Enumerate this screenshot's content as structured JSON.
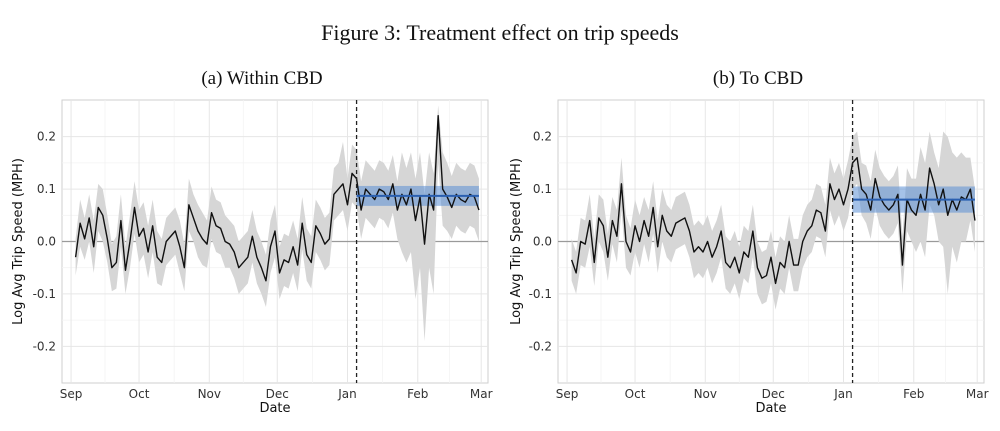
{
  "figure_title": "Figure 3: Treatment effect on trip speeds",
  "chart_data": [
    {
      "type": "line",
      "title": "(a) Within CBD",
      "xlabel": "Date",
      "ylabel": "Log Avg Trip Speed (MPH)",
      "xlim": [
        "2024-08-28",
        "2025-03-04"
      ],
      "ylim": [
        -0.27,
        0.27
      ],
      "x_ticks": [
        {
          "date": "2024-09-01",
          "label": "Sep"
        },
        {
          "date": "2024-10-01",
          "label": "Oct"
        },
        {
          "date": "2024-11-01",
          "label": "Nov"
        },
        {
          "date": "2024-12-01",
          "label": "Dec"
        },
        {
          "date": "2025-01-01",
          "label": "Jan"
        },
        {
          "date": "2025-02-01",
          "label": "Feb"
        },
        {
          "date": "2025-03-01",
          "label": "Mar"
        }
      ],
      "y_ticks": [
        0.2,
        0.1,
        0.0,
        -0.1,
        -0.2
      ],
      "y_tick_labels": [
        "0.2",
        "0.1",
        "0.0",
        "-0.1",
        "-0.2"
      ],
      "grid": true,
      "treatment_date": "2025-01-05",
      "effect": {
        "start": "2025-01-05",
        "end": "2025-02-28",
        "estimate": 0.087,
        "ci_low": 0.068,
        "ci_high": 0.106
      },
      "series": [
        {
          "name": "",
          "x": [
            "2024-09-03",
            "2024-09-05",
            "2024-09-07",
            "2024-09-09",
            "2024-09-11",
            "2024-09-13",
            "2024-09-15",
            "2024-09-17",
            "2024-09-19",
            "2024-09-21",
            "2024-09-23",
            "2024-09-25",
            "2024-09-27",
            "2024-09-29",
            "2024-10-01",
            "2024-10-03",
            "2024-10-05",
            "2024-10-07",
            "2024-10-09",
            "2024-10-11",
            "2024-10-13",
            "2024-10-15",
            "2024-10-17",
            "2024-10-19",
            "2024-10-21",
            "2024-10-23",
            "2024-10-25",
            "2024-10-27",
            "2024-10-29",
            "2024-10-31",
            "2024-11-02",
            "2024-11-04",
            "2024-11-06",
            "2024-11-08",
            "2024-11-10",
            "2024-11-12",
            "2024-11-14",
            "2024-11-16",
            "2024-11-18",
            "2024-11-20",
            "2024-11-22",
            "2024-11-24",
            "2024-11-26",
            "2024-11-28",
            "2024-11-30",
            "2024-12-02",
            "2024-12-04",
            "2024-12-06",
            "2024-12-08",
            "2024-12-10",
            "2024-12-12",
            "2024-12-14",
            "2024-12-16",
            "2024-12-18",
            "2024-12-20",
            "2024-12-22",
            "2024-12-24",
            "2024-12-26",
            "2024-12-28",
            "2024-12-30",
            "2025-01-01",
            "2025-01-03",
            "2025-01-05",
            "2025-01-07",
            "2025-01-09",
            "2025-01-11",
            "2025-01-13",
            "2025-01-15",
            "2025-01-17",
            "2025-01-19",
            "2025-01-21",
            "2025-01-23",
            "2025-01-25",
            "2025-01-27",
            "2025-01-29",
            "2025-01-31",
            "2025-02-02",
            "2025-02-04",
            "2025-02-06",
            "2025-02-08",
            "2025-02-10",
            "2025-02-12",
            "2025-02-14",
            "2025-02-16",
            "2025-02-18",
            "2025-02-20",
            "2025-02-22",
            "2025-02-24",
            "2025-02-26",
            "2025-02-28"
          ],
          "values": [
            -0.03,
            0.035,
            0.005,
            0.045,
            -0.01,
            0.065,
            0.05,
            0.005,
            -0.05,
            -0.04,
            0.04,
            -0.055,
            0.0,
            0.065,
            0.01,
            0.025,
            -0.02,
            0.03,
            -0.03,
            -0.04,
            0.0,
            0.01,
            0.02,
            -0.01,
            -0.05,
            0.07,
            0.045,
            0.02,
            0.005,
            -0.005,
            0.055,
            0.03,
            0.025,
            0.0,
            -0.005,
            -0.02,
            -0.05,
            -0.04,
            -0.03,
            0.01,
            -0.03,
            -0.05,
            -0.075,
            -0.01,
            0.02,
            -0.06,
            -0.035,
            -0.04,
            -0.01,
            -0.045,
            0.035,
            -0.025,
            -0.04,
            0.03,
            0.015,
            -0.005,
            0.005,
            0.09,
            0.1,
            0.11,
            0.07,
            0.13,
            0.12,
            0.06,
            0.1,
            0.09,
            0.08,
            0.1,
            0.095,
            0.08,
            0.11,
            0.06,
            0.09,
            0.07,
            0.1,
            0.04,
            0.085,
            -0.005,
            0.09,
            0.06,
            0.24,
            0.1,
            0.085,
            0.065,
            0.09,
            0.08,
            0.075,
            0.09,
            0.085,
            0.06
          ],
          "ci_low": [
            -0.065,
            -0.01,
            -0.035,
            0.0,
            -0.06,
            0.02,
            0.0,
            -0.04,
            -0.095,
            -0.09,
            -0.01,
            -0.1,
            -0.05,
            0.015,
            -0.04,
            -0.025,
            -0.07,
            -0.02,
            -0.08,
            -0.085,
            -0.045,
            -0.035,
            -0.025,
            -0.06,
            -0.095,
            0.02,
            0.0,
            -0.03,
            -0.045,
            -0.05,
            0.005,
            -0.02,
            -0.025,
            -0.05,
            -0.05,
            -0.07,
            -0.1,
            -0.09,
            -0.08,
            -0.04,
            -0.08,
            -0.1,
            -0.125,
            -0.06,
            -0.03,
            -0.11,
            -0.085,
            -0.09,
            -0.06,
            -0.095,
            -0.015,
            -0.075,
            -0.09,
            -0.02,
            -0.035,
            -0.055,
            -0.045,
            0.04,
            0.05,
            0.06,
            0.02,
            0.075,
            0.065,
            0.005,
            0.045,
            0.035,
            0.025,
            0.045,
            0.04,
            0.025,
            0.055,
            0.005,
            -0.02,
            -0.04,
            -0.02,
            -0.11,
            -0.05,
            -0.19,
            -0.05,
            -0.1,
            0.15,
            0.03,
            0.02,
            0.005,
            0.03,
            0.02,
            0.015,
            0.03,
            0.025,
            0.0
          ],
          "ci_high": [
            0.005,
            0.08,
            0.045,
            0.09,
            0.04,
            0.11,
            0.1,
            0.05,
            -0.005,
            0.01,
            0.09,
            -0.01,
            0.05,
            0.115,
            0.06,
            0.075,
            0.03,
            0.08,
            0.02,
            0.005,
            0.045,
            0.055,
            0.065,
            0.04,
            -0.005,
            0.12,
            0.09,
            0.07,
            0.055,
            0.04,
            0.105,
            0.08,
            0.075,
            0.05,
            0.04,
            0.03,
            0.0,
            0.01,
            0.02,
            0.06,
            0.02,
            0.0,
            -0.025,
            0.04,
            0.07,
            -0.01,
            0.015,
            0.01,
            0.04,
            0.005,
            0.085,
            0.025,
            0.01,
            0.08,
            0.065,
            0.045,
            0.055,
            0.14,
            0.15,
            0.19,
            0.12,
            0.185,
            0.175,
            0.115,
            0.155,
            0.145,
            0.135,
            0.155,
            0.15,
            0.135,
            0.165,
            0.115,
            0.17,
            0.14,
            0.17,
            0.12,
            0.17,
            0.09,
            0.17,
            0.13,
            0.26,
            0.17,
            0.15,
            0.125,
            0.15,
            0.14,
            0.135,
            0.15,
            0.145,
            0.12
          ]
        }
      ]
    },
    {
      "type": "line",
      "title": "(b) To CBD",
      "xlabel": "Date",
      "ylabel": "Log Avg Trip Speed (MPH)",
      "xlim": [
        "2024-08-28",
        "2025-03-04"
      ],
      "ylim": [
        -0.27,
        0.27
      ],
      "x_ticks": [
        {
          "date": "2024-09-01",
          "label": "Sep"
        },
        {
          "date": "2024-10-01",
          "label": "Oct"
        },
        {
          "date": "2024-11-01",
          "label": "Nov"
        },
        {
          "date": "2024-12-01",
          "label": "Dec"
        },
        {
          "date": "2025-01-01",
          "label": "Jan"
        },
        {
          "date": "2025-02-01",
          "label": "Feb"
        },
        {
          "date": "2025-03-01",
          "label": "Mar"
        }
      ],
      "y_ticks": [
        0.2,
        0.1,
        0.0,
        -0.1,
        -0.2
      ],
      "y_tick_labels": [
        "0.2",
        "0.1",
        "0.0",
        "-0.1",
        "-0.2"
      ],
      "grid": true,
      "treatment_date": "2025-01-05",
      "effect": {
        "start": "2025-01-05",
        "end": "2025-02-28",
        "estimate": 0.08,
        "ci_low": 0.055,
        "ci_high": 0.105
      },
      "series": [
        {
          "name": "",
          "x": [
            "2024-09-03",
            "2024-09-05",
            "2024-09-07",
            "2024-09-09",
            "2024-09-11",
            "2024-09-13",
            "2024-09-15",
            "2024-09-17",
            "2024-09-19",
            "2024-09-21",
            "2024-09-23",
            "2024-09-25",
            "2024-09-27",
            "2024-09-29",
            "2024-10-01",
            "2024-10-03",
            "2024-10-05",
            "2024-10-07",
            "2024-10-09",
            "2024-10-11",
            "2024-10-13",
            "2024-10-15",
            "2024-10-17",
            "2024-10-19",
            "2024-10-21",
            "2024-10-23",
            "2024-10-25",
            "2024-10-27",
            "2024-10-29",
            "2024-10-31",
            "2024-11-02",
            "2024-11-04",
            "2024-11-06",
            "2024-11-08",
            "2024-11-10",
            "2024-11-12",
            "2024-11-14",
            "2024-11-16",
            "2024-11-18",
            "2024-11-20",
            "2024-11-22",
            "2024-11-24",
            "2024-11-26",
            "2024-11-28",
            "2024-11-30",
            "2024-12-02",
            "2024-12-04",
            "2024-12-06",
            "2024-12-08",
            "2024-12-10",
            "2024-12-12",
            "2024-12-14",
            "2024-12-16",
            "2024-12-18",
            "2024-12-20",
            "2024-12-22",
            "2024-12-24",
            "2024-12-26",
            "2024-12-28",
            "2024-12-30",
            "2025-01-01",
            "2025-01-03",
            "2025-01-05",
            "2025-01-07",
            "2025-01-09",
            "2025-01-11",
            "2025-01-13",
            "2025-01-15",
            "2025-01-17",
            "2025-01-19",
            "2025-01-21",
            "2025-01-23",
            "2025-01-25",
            "2025-01-27",
            "2025-01-29",
            "2025-01-31",
            "2025-02-02",
            "2025-02-04",
            "2025-02-06",
            "2025-02-08",
            "2025-02-10",
            "2025-02-12",
            "2025-02-14",
            "2025-02-16",
            "2025-02-18",
            "2025-02-20",
            "2025-02-22",
            "2025-02-24",
            "2025-02-26",
            "2025-02-28"
          ],
          "values": [
            -0.035,
            -0.06,
            0.0,
            -0.005,
            0.04,
            -0.04,
            0.045,
            0.03,
            -0.03,
            0.04,
            0.01,
            0.11,
            0.0,
            -0.02,
            0.03,
            0.0,
            0.04,
            0.01,
            0.065,
            -0.01,
            0.05,
            0.02,
            0.01,
            0.035,
            0.04,
            0.045,
            0.02,
            -0.02,
            -0.01,
            -0.02,
            0.0,
            -0.03,
            -0.01,
            0.02,
            -0.04,
            -0.05,
            -0.03,
            -0.06,
            -0.02,
            -0.03,
            0.02,
            -0.05,
            -0.07,
            -0.065,
            -0.03,
            -0.08,
            -0.04,
            -0.05,
            0.0,
            -0.045,
            -0.045,
            0.0,
            0.02,
            0.03,
            0.06,
            0.055,
            0.02,
            0.11,
            0.08,
            0.1,
            0.07,
            0.1,
            0.15,
            0.16,
            0.1,
            0.09,
            0.06,
            0.12,
            0.085,
            0.07,
            0.06,
            0.07,
            0.09,
            -0.045,
            0.08,
            0.06,
            0.05,
            0.09,
            0.06,
            0.14,
            0.11,
            0.07,
            0.1,
            0.05,
            0.08,
            0.06,
            0.085,
            0.08,
            0.1,
            0.04
          ],
          "ci_low": [
            -0.075,
            -0.1,
            -0.045,
            -0.05,
            -0.01,
            -0.085,
            0.0,
            -0.02,
            -0.075,
            -0.005,
            -0.04,
            0.06,
            -0.05,
            -0.065,
            -0.02,
            -0.05,
            -0.005,
            -0.04,
            0.015,
            -0.06,
            0.0,
            -0.03,
            -0.04,
            -0.015,
            -0.01,
            -0.005,
            -0.03,
            -0.07,
            -0.06,
            -0.07,
            -0.05,
            -0.08,
            -0.06,
            -0.03,
            -0.09,
            -0.1,
            -0.08,
            -0.11,
            -0.07,
            -0.08,
            -0.03,
            -0.1,
            -0.12,
            -0.115,
            -0.08,
            -0.13,
            -0.09,
            -0.1,
            -0.05,
            -0.095,
            -0.095,
            -0.05,
            -0.03,
            -0.02,
            0.01,
            0.005,
            -0.03,
            0.06,
            0.03,
            0.05,
            0.02,
            0.045,
            0.1,
            0.11,
            0.05,
            0.035,
            0.005,
            0.065,
            0.03,
            0.015,
            0.005,
            0.015,
            0.035,
            -0.1,
            0.02,
            0.0,
            -0.02,
            0.0,
            -0.03,
            0.07,
            0.05,
            0.0,
            -0.01,
            -0.1,
            -0.01,
            -0.04,
            0.0,
            0.0,
            0.04,
            -0.02
          ],
          "ci_high": [
            0.005,
            -0.02,
            0.045,
            0.04,
            0.09,
            0.005,
            0.09,
            0.08,
            0.015,
            0.085,
            0.06,
            0.16,
            0.05,
            0.025,
            0.08,
            0.05,
            0.085,
            0.06,
            0.115,
            0.04,
            0.1,
            0.07,
            0.06,
            0.085,
            0.09,
            0.095,
            0.07,
            0.03,
            0.04,
            0.03,
            0.05,
            0.02,
            0.04,
            0.07,
            0.01,
            0.0,
            0.02,
            -0.01,
            0.03,
            0.02,
            0.07,
            0.0,
            -0.02,
            -0.015,
            0.02,
            -0.03,
            0.01,
            0.0,
            0.05,
            0.005,
            0.005,
            0.05,
            0.07,
            0.08,
            0.11,
            0.105,
            0.07,
            0.16,
            0.13,
            0.15,
            0.12,
            0.155,
            0.2,
            0.21,
            0.15,
            0.145,
            0.115,
            0.175,
            0.14,
            0.125,
            0.115,
            0.125,
            0.145,
            0.01,
            0.14,
            0.12,
            0.12,
            0.18,
            0.15,
            0.21,
            0.17,
            0.14,
            0.21,
            0.2,
            0.17,
            0.16,
            0.17,
            0.16,
            0.16,
            0.1
          ]
        }
      ]
    }
  ]
}
